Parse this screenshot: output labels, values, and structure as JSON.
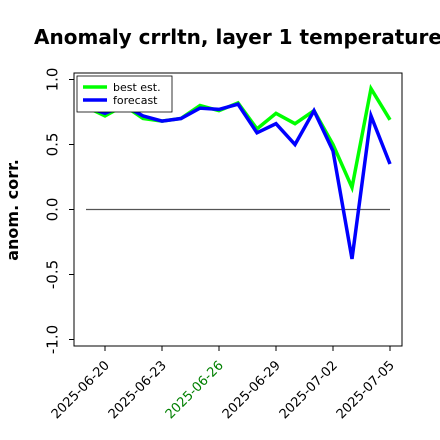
{
  "chart_data": {
    "type": "line",
    "title": "Anomaly crrltn, layer 1 temperature",
    "ylabel": "anom. corr.",
    "xlabel": "",
    "ylim": [
      -1.05,
      1.05
    ],
    "yticks": [
      "-1.0",
      "-0.5",
      "0.0",
      "0.5",
      "1.0"
    ],
    "ytick_values": [
      -1.0,
      -0.5,
      0.0,
      0.5,
      1.0
    ],
    "xtick_labels": [
      "2025-06-20",
      "2025-06-23",
      "2025-06-26",
      "2025-06-29",
      "2025-07-02",
      "2025-07-05"
    ],
    "xtick_colors": [
      "#000000",
      "#000000",
      "#008000",
      "#000000",
      "#000000",
      "#000000"
    ],
    "reference_line": 0.0,
    "legend_position": "top-left",
    "x": [
      "2025-06-19",
      "2025-06-20",
      "2025-06-21",
      "2025-06-22",
      "2025-06-23",
      "2025-06-24",
      "2025-06-25",
      "2025-06-26",
      "2025-06-27",
      "2025-06-28",
      "2025-06-29",
      "2025-06-30",
      "2025-07-01",
      "2025-07-02",
      "2025-07-03",
      "2025-07-04",
      "2025-07-05"
    ],
    "series": [
      {
        "name": "best est.",
        "color": "#00ff00",
        "values": [
          0.79,
          0.72,
          0.8,
          0.7,
          0.68,
          0.7,
          0.8,
          0.76,
          0.82,
          0.62,
          0.74,
          0.66,
          0.76,
          0.5,
          0.17,
          0.93,
          0.69
        ]
      },
      {
        "name": "forecast",
        "color": "#0000ff",
        "values": [
          0.79,
          0.74,
          0.8,
          0.72,
          0.68,
          0.7,
          0.78,
          0.77,
          0.81,
          0.59,
          0.66,
          0.5,
          0.76,
          0.45,
          -0.38,
          0.72,
          0.35
        ]
      }
    ]
  }
}
